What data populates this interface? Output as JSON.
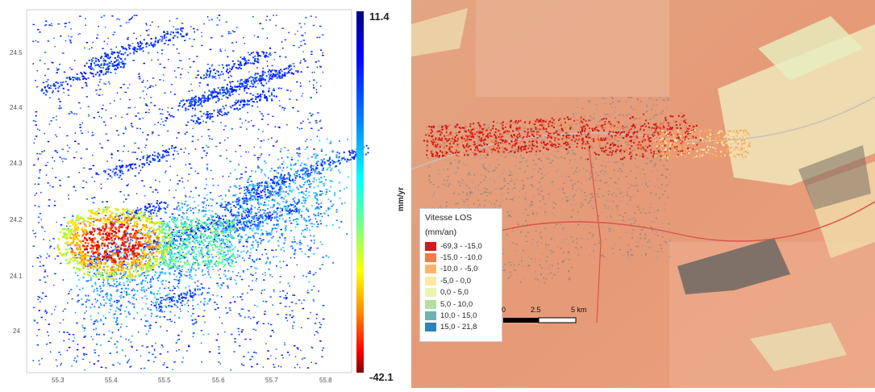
{
  "left_map": {
    "x_ticks": [
      "55.3",
      "55.4",
      "55.5",
      "55.6",
      "55.7",
      "55.8"
    ],
    "y_ticks": [
      "24.5",
      "24.4",
      "24.3",
      "24.2",
      "24.1",
      "24"
    ],
    "colorbar": {
      "max_label": "11.4",
      "min_label": "-42.1",
      "unit": "mm/yr",
      "colors": [
        "#00007f",
        "#0000ff",
        "#0080ff",
        "#00ffff",
        "#80ff80",
        "#ffff00",
        "#ff8000",
        "#ff0000",
        "#7f0000"
      ]
    }
  },
  "right_map": {
    "legend": {
      "title": "Vitesse LOS",
      "unit": "(mm/an)",
      "items": [
        {
          "label": "-69,3 - -15,0",
          "color": "#d7191c"
        },
        {
          "label": "-15,0 - -10,0",
          "color": "#f07c4a"
        },
        {
          "label": "-10,0 - -5,0",
          "color": "#fdb56e"
        },
        {
          "label": "-5,0 - 0,0",
          "color": "#fee8a6"
        },
        {
          "label": "0,0 - 5,0",
          "color": "#e8f5b4"
        },
        {
          "label": "5,0 - 10,0",
          "color": "#b3dea0"
        },
        {
          "label": "10,0 - 15,0",
          "color": "#6fb1b3"
        },
        {
          "label": "15,0 - 21,8",
          "color": "#2b83ba"
        }
      ]
    },
    "scale_bar": {
      "labels": [
        "0",
        "2.5",
        "5 km"
      ]
    }
  }
}
